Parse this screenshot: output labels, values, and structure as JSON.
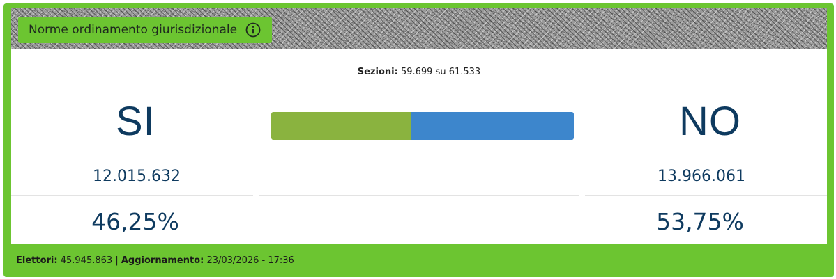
{
  "header": {
    "title": "Norme ordinamento giurisdizionale",
    "info_icon": "info-icon"
  },
  "sezioni": {
    "label": "Sezioni:",
    "value": "59.699 su 61.533"
  },
  "results": {
    "si": {
      "label": "SI",
      "votes": "12.015.632",
      "percent": "46,25%",
      "share": 46.25,
      "color": "#8ab33f"
    },
    "no": {
      "label": "NO",
      "votes": "13.966.061",
      "percent": "53,75%",
      "share": 53.75,
      "color": "#3d86cc"
    }
  },
  "footer": {
    "elettori_label": "Elettori:",
    "elettori_value": "45.945.863",
    "separator": "|",
    "aggiornamento_label": "Aggiornamento:",
    "aggiornamento_value": "23/03/2026 - 17:36"
  },
  "colors": {
    "accent_green": "#6cc531",
    "text_navy": "#0e3a5f"
  }
}
